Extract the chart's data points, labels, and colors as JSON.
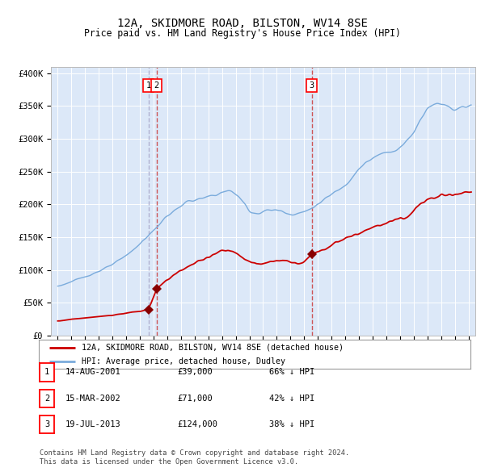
{
  "title": "12A, SKIDMORE ROAD, BILSTON, WV14 8SE",
  "subtitle": "Price paid vs. HM Land Registry's House Price Index (HPI)",
  "title_fontsize": 10,
  "subtitle_fontsize": 8.5,
  "ylabel_ticks": [
    "£0",
    "£50K",
    "£100K",
    "£150K",
    "£200K",
    "£250K",
    "£300K",
    "£350K",
    "£400K"
  ],
  "ytick_values": [
    0,
    50000,
    100000,
    150000,
    200000,
    250000,
    300000,
    350000,
    400000
  ],
  "ylim": [
    0,
    410000
  ],
  "xlim": [
    1994.5,
    2025.5
  ],
  "background_color": "#ffffff",
  "plot_bg_color": "#dce8f8",
  "grid_color": "#ffffff",
  "transactions": [
    {
      "date_num": 2001.62,
      "price": 39000,
      "label": "1"
    },
    {
      "date_num": 2002.21,
      "price": 71000,
      "label": "2"
    },
    {
      "date_num": 2013.55,
      "price": 124000,
      "label": "3"
    }
  ],
  "vlines": [
    2001.62,
    2002.21,
    2013.55
  ],
  "legend_line1": "12A, SKIDMORE ROAD, BILSTON, WV14 8SE (detached house)",
  "legend_line2": "HPI: Average price, detached house, Dudley",
  "table_rows": [
    {
      "num": "1",
      "date": "14-AUG-2001",
      "price": "£39,000",
      "pct": "66% ↓ HPI"
    },
    {
      "num": "2",
      "date": "15-MAR-2002",
      "price": "£71,000",
      "pct": "42% ↓ HPI"
    },
    {
      "num": "3",
      "date": "19-JUL-2013",
      "price": "£124,000",
      "pct": "38% ↓ HPI"
    }
  ],
  "footnote1": "Contains HM Land Registry data © Crown copyright and database right 2024.",
  "footnote2": "This data is licensed under the Open Government Licence v3.0.",
  "red_line_color": "#cc0000",
  "blue_line_color": "#7aabdc",
  "marker_color": "#880000",
  "vline_color1": "#aaaacc",
  "vline_color2": "#cc4444"
}
